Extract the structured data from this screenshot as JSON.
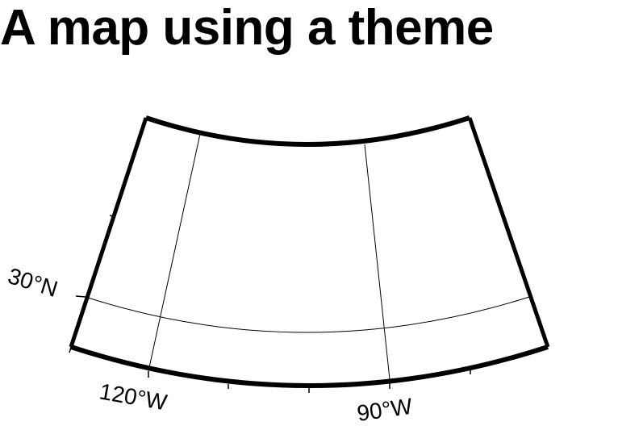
{
  "map": {
    "title": "A map using a theme",
    "latitude_labels": [
      "30°N"
    ],
    "longitude_labels": [
      "120°W",
      "90°W"
    ],
    "colors": {
      "frame": "#000000",
      "gridlines": "#000000",
      "background": "#ffffff"
    }
  }
}
